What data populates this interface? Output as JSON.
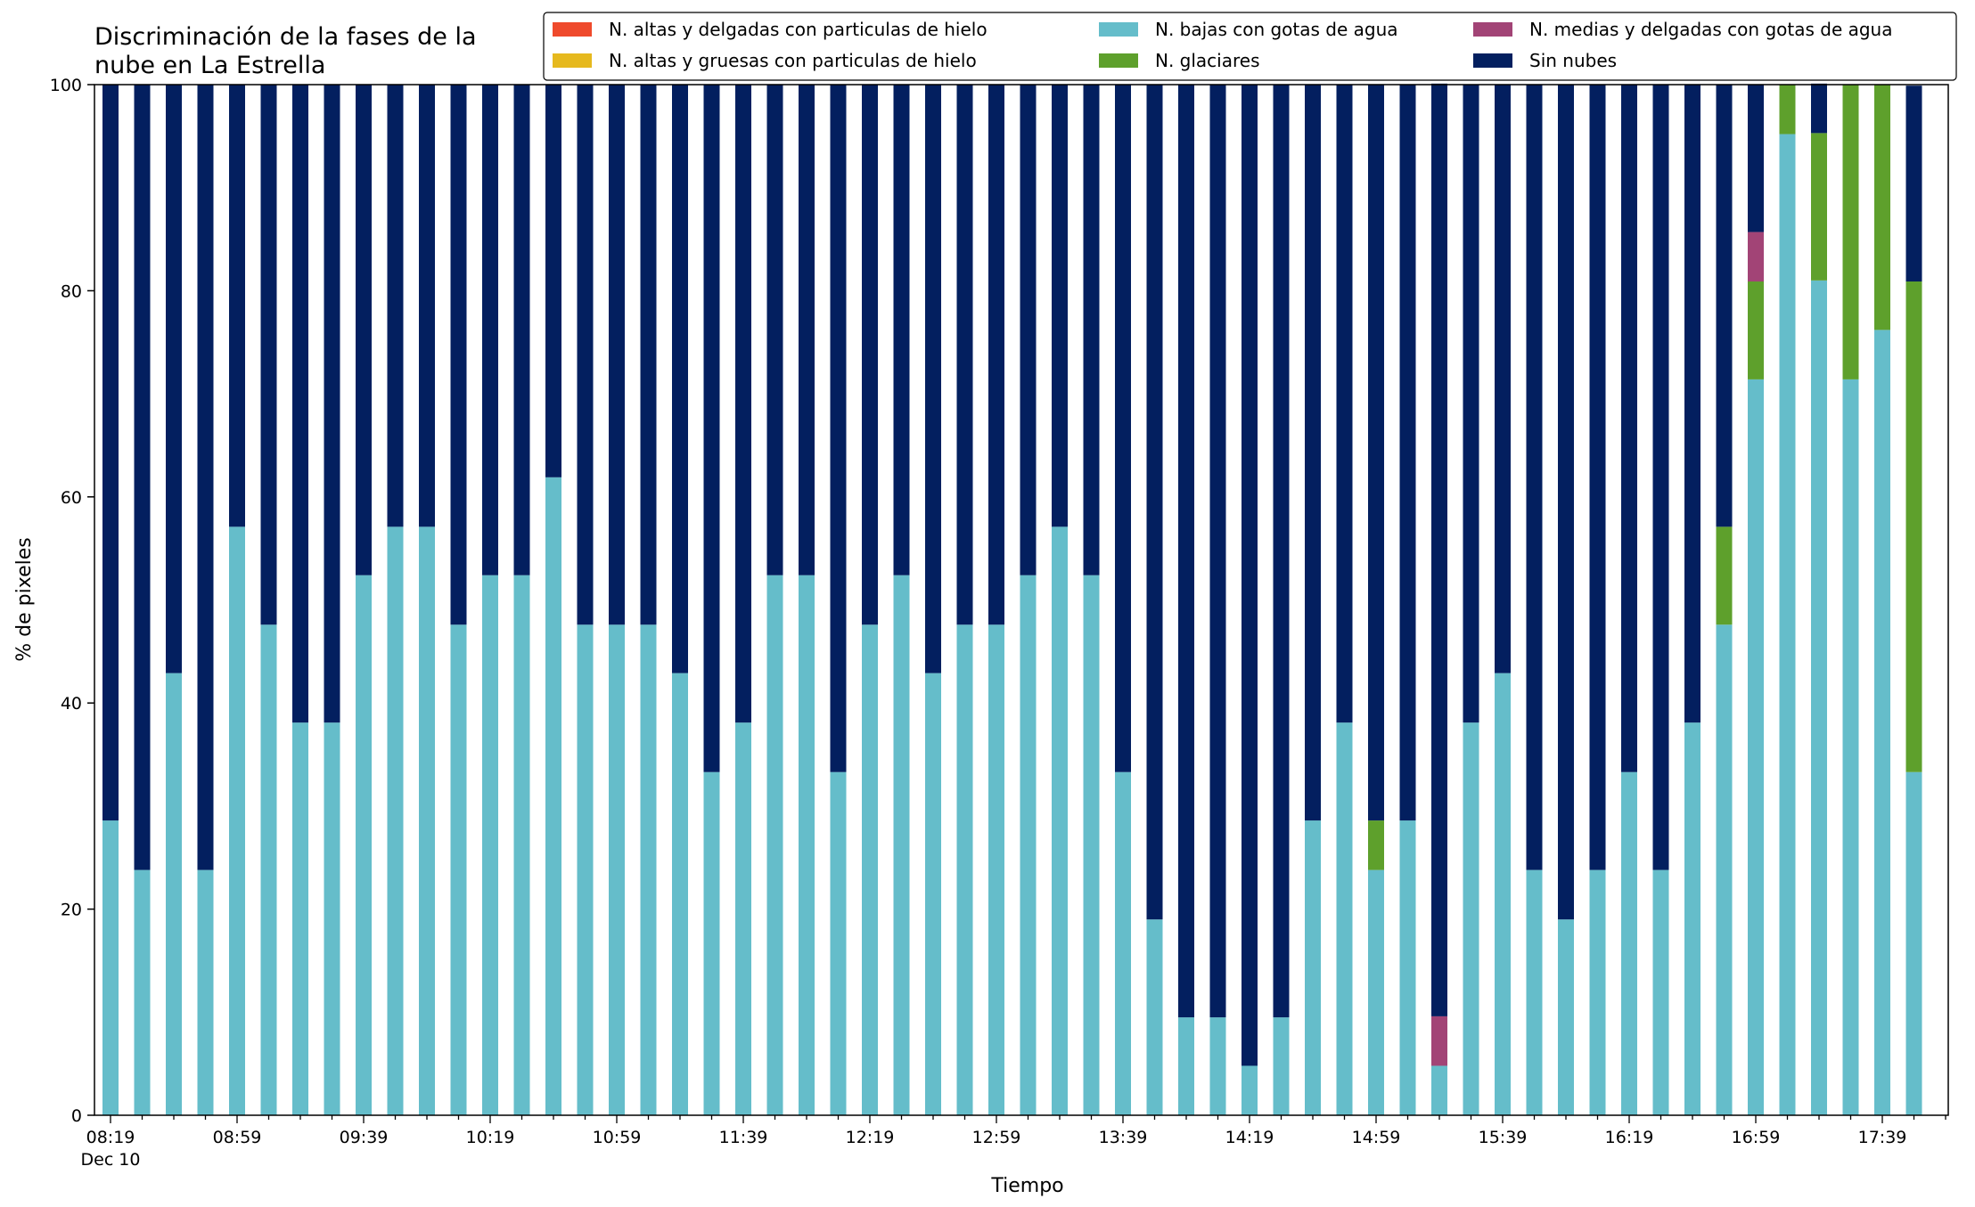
{
  "chart_data": {
    "type": "bar",
    "stacked": true,
    "title_lines": [
      "Discriminación de la fases de la",
      "nube en La Estrella"
    ],
    "xlabel": "Tiempo",
    "ylabel": "% de pixeles",
    "ylim": [
      0,
      100
    ],
    "yticks": [
      0,
      20,
      40,
      60,
      80,
      100
    ],
    "grid": false,
    "legend_position": "top-right",
    "x_tick_labels": [
      "08:19",
      "08:59",
      "09:39",
      "10:19",
      "10:59",
      "11:39",
      "12:19",
      "12:59",
      "13:39",
      "14:19",
      "14:59",
      "15:39",
      "16:19",
      "16:59",
      "17:39"
    ],
    "x_date_label": "Dec 10",
    "times": [
      "08:19",
      "08:29",
      "08:39",
      "08:49",
      "08:59",
      "09:09",
      "09:19",
      "09:29",
      "09:39",
      "09:49",
      "09:59",
      "10:09",
      "10:19",
      "10:29",
      "10:39",
      "10:49",
      "10:59",
      "11:09",
      "11:19",
      "11:29",
      "11:39",
      "11:49",
      "11:59",
      "12:09",
      "12:19",
      "12:29",
      "12:39",
      "12:49",
      "12:59",
      "13:09",
      "13:19",
      "13:29",
      "13:39",
      "13:49",
      "13:59",
      "14:09",
      "14:19",
      "14:29",
      "14:39",
      "14:49",
      "14:59",
      "15:09",
      "15:19",
      "15:29",
      "15:39",
      "15:49",
      "15:59",
      "16:09",
      "16:19",
      "16:29",
      "16:39",
      "16:49",
      "16:59",
      "17:09",
      "17:19",
      "17:29",
      "17:39",
      "17:49"
    ],
    "series": [
      {
        "name": "N. altas y delgadas con particulas de hielo",
        "color": "#ef4a2c",
        "values": [
          0,
          0,
          0,
          0,
          0,
          0,
          0,
          0,
          0,
          0,
          0,
          0,
          0,
          0,
          0,
          0,
          0,
          0,
          0,
          0,
          0,
          0,
          0,
          0,
          0,
          0,
          0,
          0,
          0,
          0,
          0,
          0,
          0,
          0,
          0,
          0,
          0,
          0,
          0,
          0,
          0,
          0,
          0,
          0,
          0,
          0,
          0,
          0,
          0,
          0,
          0,
          0,
          0,
          0,
          0,
          0,
          0,
          0
        ]
      },
      {
        "name": "N. altas y gruesas con particulas de hielo",
        "color": "#e6b91e",
        "values": [
          0,
          0,
          0,
          0,
          0,
          0,
          0,
          0,
          0,
          0,
          0,
          0,
          0,
          0,
          0,
          0,
          0,
          0,
          0,
          0,
          0,
          0,
          0,
          0,
          0,
          0,
          0,
          0,
          0,
          0,
          0,
          0,
          0,
          0,
          0,
          0,
          0,
          0,
          0,
          0,
          0,
          0,
          0,
          0,
          0,
          0,
          0,
          0,
          0,
          0,
          0,
          0,
          0,
          0,
          0,
          0,
          0,
          0
        ]
      },
      {
        "name": "N. bajas con gotas de agua",
        "color": "#65bdca",
        "values": [
          28.6,
          23.8,
          42.9,
          23.8,
          57.1,
          47.6,
          38.1,
          38.1,
          52.4,
          57.1,
          57.1,
          47.6,
          52.4,
          52.4,
          61.9,
          47.6,
          47.6,
          47.6,
          42.9,
          33.3,
          38.1,
          52.4,
          52.4,
          33.3,
          47.6,
          52.4,
          42.9,
          47.6,
          47.6,
          52.4,
          57.1,
          52.4,
          33.3,
          19.0,
          9.5,
          9.5,
          4.8,
          9.5,
          28.6,
          38.1,
          23.8,
          28.6,
          4.8,
          38.1,
          42.9,
          23.8,
          19.0,
          23.8,
          33.3,
          23.8,
          38.1,
          47.6,
          71.4,
          95.2,
          81.0,
          71.4,
          76.2,
          33.3
        ]
      },
      {
        "name": "N. glaciares",
        "color": "#5ea02c",
        "values": [
          0,
          0,
          0,
          0,
          0,
          0,
          0,
          0,
          0,
          0,
          0,
          0,
          0,
          0,
          0,
          0,
          0,
          0,
          0,
          0,
          0,
          0,
          0,
          0,
          0,
          0,
          0,
          0,
          0,
          0,
          0,
          0,
          0,
          0,
          0,
          0,
          0,
          0,
          0,
          0,
          4.8,
          0,
          0,
          0,
          0,
          0,
          0,
          0,
          0,
          0,
          0,
          9.5,
          9.5,
          4.8,
          14.3,
          28.6,
          23.8,
          47.6
        ]
      },
      {
        "name": "N. medias y delgadas con gotas de agua",
        "color": "#a24476",
        "values": [
          0,
          0,
          0,
          0,
          0,
          0,
          0,
          0,
          0,
          0,
          0,
          0,
          0,
          0,
          0,
          0,
          0,
          0,
          0,
          0,
          0,
          0,
          0,
          0,
          0,
          0,
          0,
          0,
          0,
          0,
          0,
          0,
          0,
          0,
          0,
          0,
          0,
          0,
          0,
          0,
          0,
          0,
          4.8,
          0,
          0,
          0,
          0,
          0,
          0,
          0,
          0,
          0,
          4.8,
          0,
          0,
          0,
          0,
          0
        ]
      },
      {
        "name": "Sin nubes",
        "color": "#031f5f",
        "values": [
          71.4,
          76.2,
          57.1,
          76.2,
          42.9,
          52.4,
          61.9,
          61.9,
          47.6,
          42.9,
          42.9,
          52.4,
          47.6,
          47.6,
          38.1,
          52.4,
          52.4,
          52.4,
          57.1,
          66.7,
          61.9,
          47.6,
          47.6,
          66.7,
          52.4,
          47.6,
          57.1,
          52.4,
          52.4,
          47.6,
          42.9,
          47.6,
          66.7,
          81.0,
          90.5,
          90.5,
          95.2,
          90.5,
          71.4,
          61.9,
          71.4,
          71.4,
          90.5,
          61.9,
          57.1,
          76.2,
          81.0,
          76.2,
          66.7,
          76.2,
          61.9,
          42.9,
          14.3,
          0,
          4.8,
          0,
          0,
          19.0
        ]
      }
    ]
  }
}
